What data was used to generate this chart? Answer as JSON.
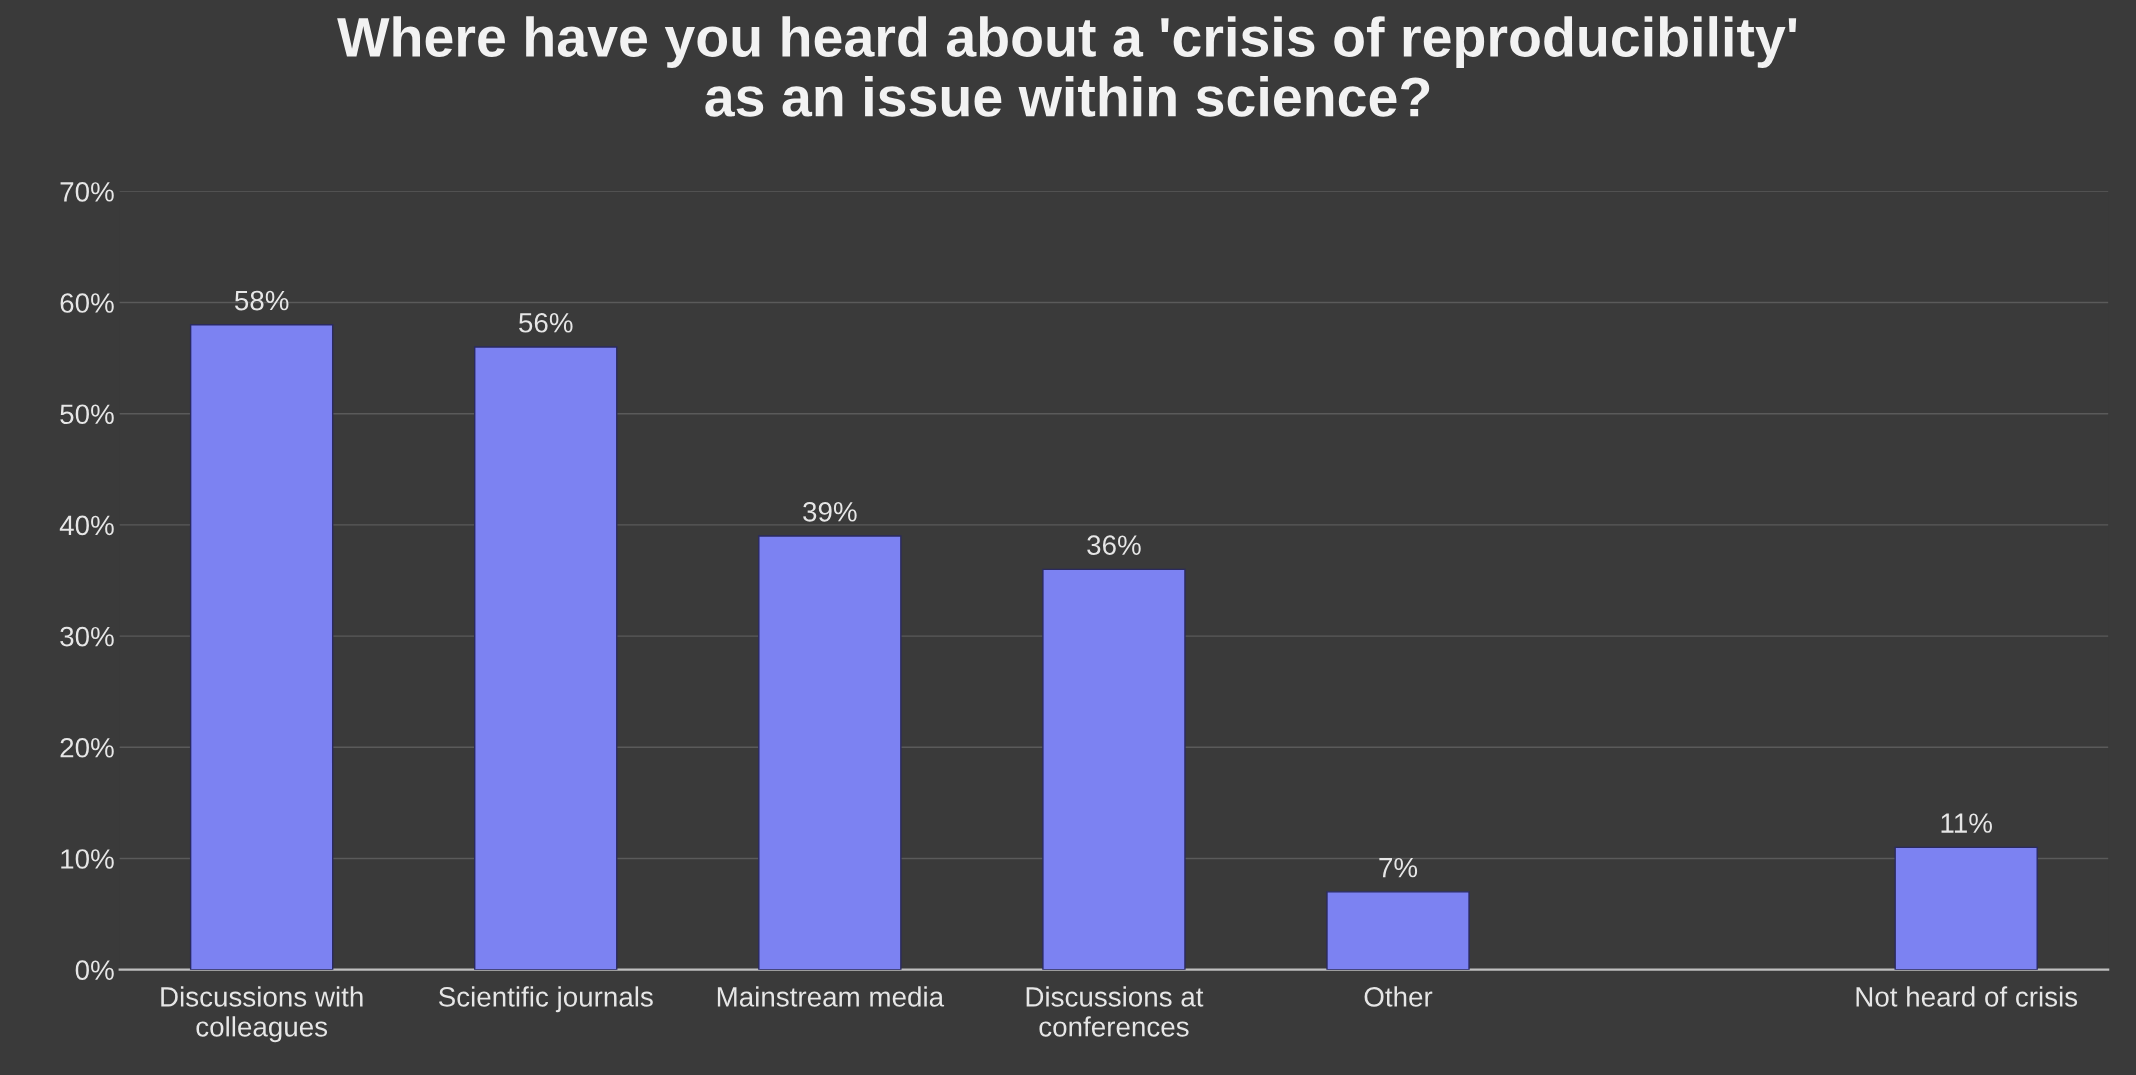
{
  "chart_data": {
    "type": "bar",
    "title": "Where have you heard about a 'crisis of reproducibility'\nas an issue within science?",
    "categories": [
      "Discussions with\ncolleagues",
      "Scientific journals",
      "Mainstream media",
      "Discussions at\nconferences",
      "Other",
      null,
      "Not heard of crisis"
    ],
    "values": [
      58,
      56,
      39,
      36,
      7,
      null,
      11
    ],
    "value_labels": [
      "58%",
      "56%",
      "39%",
      "36%",
      "7%",
      null,
      "11%"
    ],
    "color": "#7c82f2",
    "ylim": [
      0,
      70
    ],
    "yticks": [
      {
        "value": 0,
        "label": "0%"
      },
      {
        "value": 10,
        "label": "10%"
      },
      {
        "value": 20,
        "label": "20%"
      },
      {
        "value": 30,
        "label": "30%"
      },
      {
        "value": 40,
        "label": "40%"
      },
      {
        "value": 50,
        "label": "50%"
      },
      {
        "value": 60,
        "label": "60%"
      },
      {
        "value": 70,
        "label": "70%"
      }
    ],
    "grid": "y",
    "legend": false
  }
}
